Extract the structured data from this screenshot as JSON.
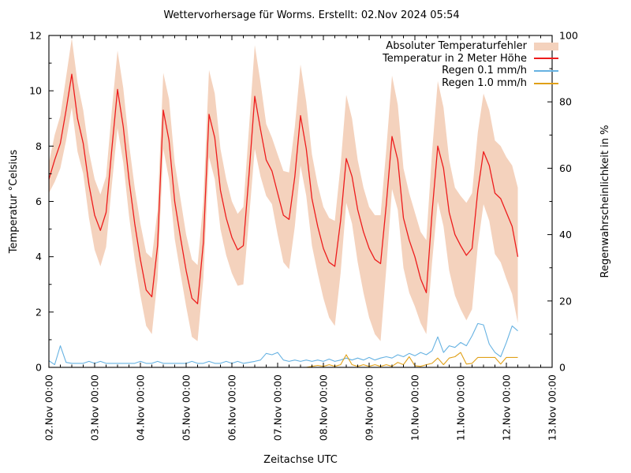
{
  "title": "Wettervorhersage für Worms. Erstellt: 02.Nov 2024 05:54",
  "chart_data": {
    "type": "line",
    "title": "Wettervorhersage für Worms. Erstellt: 02.Nov 2024 05:54",
    "xlabel": "Zeitachse UTC",
    "ylabel_left": "Temperatur °Celsius",
    "ylabel_right": "Regenwahrscheinlichkeit in %",
    "ylim_left": [
      0,
      12
    ],
    "ylim_right": [
      0,
      100
    ],
    "x_range_hours": [
      0,
      264
    ],
    "grid": false,
    "legend_position": "top-right",
    "x_ticks": [
      "02.Nov 00:00",
      "03.Nov 00:00",
      "04.Nov 00:00",
      "05.Nov 00:00",
      "06.Nov 00:00",
      "07.Nov 00:00",
      "08.Nov 00:00",
      "09.Nov 00:00",
      "10.Nov 00:00",
      "11.Nov 00:00",
      "12.Nov 00:00",
      "13.Nov 00:00"
    ],
    "y_ticks_left": [
      0,
      2,
      4,
      6,
      8,
      10,
      12
    ],
    "y_ticks_right": [
      0,
      20,
      40,
      60,
      80,
      100
    ],
    "legend": [
      {
        "label": "Absoluter Temperaturfehler",
        "type": "band",
        "color": "#f4d2bd"
      },
      {
        "label": "Temperatur in 2 Meter Höhe",
        "type": "line",
        "color": "#ed1c1c"
      },
      {
        "label": "Regen 0.1 mm/h",
        "type": "line",
        "color": "#66b2e2"
      },
      {
        "label": "Regen 1.0 mm/h",
        "type": "line",
        "color": "#e0a018"
      }
    ],
    "hours": [
      0,
      3,
      6,
      9,
      12,
      15,
      18,
      21,
      24,
      27,
      30,
      33,
      36,
      39,
      42,
      45,
      48,
      51,
      54,
      57,
      60,
      63,
      66,
      69,
      72,
      75,
      78,
      81,
      84,
      87,
      90,
      93,
      96,
      99,
      102,
      105,
      108,
      111,
      114,
      117,
      120,
      123,
      126,
      129,
      132,
      135,
      138,
      141,
      144,
      147,
      150,
      153,
      156,
      159,
      162,
      165,
      168,
      171,
      174,
      177,
      180,
      183,
      186,
      189,
      192,
      195,
      198,
      201,
      204,
      207,
      210,
      213,
      216,
      219,
      222,
      225,
      228,
      231,
      234,
      237,
      240,
      243,
      246
    ],
    "series": [
      {
        "name": "Absoluter Temperaturfehler",
        "style": "band",
        "axis": "left",
        "color": "#f4d2bd",
        "upper": [
          7.4,
          8.4,
          9.1,
          10.5,
          11.9,
          10.3,
          9.3,
          7.8,
          6.8,
          6.25,
          6.9,
          9.3,
          11.45,
          10.1,
          8.1,
          6.5,
          5.2,
          4.15,
          3.95,
          5.7,
          10.65,
          9.7,
          7.4,
          6.1,
          4.8,
          3.9,
          3.7,
          6.0,
          10.75,
          9.9,
          7.9,
          6.8,
          6.0,
          5.55,
          5.8,
          8.7,
          11.65,
          10.3,
          8.8,
          8.3,
          7.7,
          7.1,
          7.05,
          8.7,
          10.95,
          9.6,
          7.7,
          6.6,
          5.8,
          5.4,
          5.3,
          7.3,
          9.85,
          9.0,
          7.5,
          6.5,
          5.8,
          5.5,
          5.5,
          7.9,
          10.55,
          9.5,
          7.2,
          6.3,
          5.6,
          4.9,
          4.6,
          7.8,
          10.35,
          9.4,
          7.5,
          6.5,
          6.2,
          5.95,
          6.3,
          8.5,
          9.9,
          9.3,
          8.2,
          8.0,
          7.6,
          7.3,
          6.5
        ],
        "lower": [
          6.3,
          6.7,
          7.2,
          8.2,
          9.4,
          7.8,
          7.0,
          5.4,
          4.25,
          3.65,
          4.35,
          6.6,
          8.65,
          7.4,
          5.5,
          3.9,
          2.6,
          1.5,
          1.2,
          3.2,
          7.9,
          6.8,
          4.65,
          3.4,
          2.2,
          1.1,
          0.95,
          3.2,
          7.6,
          6.8,
          5.0,
          4.05,
          3.4,
          2.95,
          3.0,
          5.4,
          7.9,
          6.9,
          6.2,
          5.9,
          4.8,
          3.8,
          3.55,
          5.1,
          7.3,
          6.2,
          4.4,
          3.4,
          2.5,
          1.8,
          1.5,
          3.4,
          5.95,
          5.2,
          3.8,
          2.7,
          1.8,
          1.2,
          0.95,
          3.6,
          6.45,
          5.7,
          3.6,
          2.7,
          2.2,
          1.6,
          1.2,
          3.8,
          6.0,
          5.1,
          3.5,
          2.6,
          2.1,
          1.7,
          2.1,
          4.4,
          5.9,
          5.3,
          4.1,
          3.8,
          3.2,
          2.65,
          1.6
        ]
      },
      {
        "name": "Temperatur in 2 Meter Höhe",
        "style": "line",
        "axis": "left",
        "color": "#ed1c1c",
        "values": [
          6.8,
          7.5,
          8.1,
          9.3,
          10.6,
          9.0,
          8.1,
          6.6,
          5.5,
          4.95,
          5.6,
          7.9,
          10.05,
          8.7,
          6.8,
          5.2,
          3.9,
          2.8,
          2.55,
          4.4,
          9.3,
          8.2,
          6.0,
          4.7,
          3.5,
          2.5,
          2.3,
          4.5,
          9.15,
          8.3,
          6.4,
          5.4,
          4.7,
          4.25,
          4.4,
          7.0,
          9.8,
          8.6,
          7.5,
          7.1,
          6.3,
          5.5,
          5.35,
          6.9,
          9.1,
          7.9,
          6.1,
          5.1,
          4.3,
          3.8,
          3.65,
          5.3,
          7.55,
          6.9,
          5.7,
          4.9,
          4.3,
          3.9,
          3.75,
          5.9,
          8.35,
          7.5,
          5.4,
          4.6,
          4.0,
          3.2,
          2.7,
          5.6,
          8.0,
          7.2,
          5.6,
          4.8,
          4.4,
          4.05,
          4.3,
          6.4,
          7.8,
          7.3,
          6.3,
          6.1,
          5.6,
          5.1,
          4.0
        ]
      },
      {
        "name": "Regen 0.1 mm/h",
        "style": "line",
        "axis": "right",
        "color": "#66b2e2",
        "values": [
          2,
          0.8,
          6.5,
          1.5,
          1.2,
          1.2,
          1.2,
          1.8,
          1.2,
          1.8,
          1.2,
          1.2,
          1.2,
          1.2,
          1.2,
          1.2,
          1.8,
          1.2,
          1.2,
          1.8,
          1.2,
          1.2,
          1.2,
          1.2,
          1.2,
          1.8,
          1.2,
          1.2,
          1.8,
          1.2,
          1.2,
          1.8,
          1.2,
          1.8,
          1.2,
          1.5,
          1.8,
          2.2,
          4.2,
          3.8,
          4.5,
          2.2,
          1.8,
          2.2,
          1.8,
          2.2,
          1.8,
          2.2,
          1.8,
          2.5,
          1.8,
          2.2,
          2.8,
          2.2,
          2.8,
          2.2,
          3.0,
          2.2,
          2.8,
          3.2,
          2.8,
          3.8,
          3.2,
          4.2,
          3.5,
          4.5,
          3.8,
          5.0,
          9.2,
          4.5,
          6.5,
          6.0,
          7.5,
          6.5,
          9.5,
          13.2,
          12.8,
          7.0,
          4.5,
          3.2,
          7.5,
          12.5,
          11.0
        ]
      },
      {
        "name": "Regen 1.0 mm/h",
        "style": "line",
        "axis": "right",
        "color": "#e0a018",
        "values": [
          0,
          0,
          0,
          0,
          0,
          0,
          0,
          0,
          0,
          0,
          0,
          0,
          0,
          0,
          0,
          0,
          0,
          0,
          0,
          0,
          0,
          0,
          0,
          0,
          0,
          0,
          0,
          0,
          0,
          0,
          0,
          0,
          0,
          0,
          0,
          0,
          0,
          0,
          0,
          0,
          0,
          0,
          0,
          0,
          0,
          0,
          0.3,
          0.6,
          0.3,
          0.8,
          0.3,
          0.8,
          3.8,
          0.8,
          0.3,
          0.8,
          0.3,
          0.8,
          0.3,
          0.8,
          0.3,
          1.5,
          0.8,
          3.2,
          0.5,
          0.3,
          0.8,
          1.2,
          2.8,
          0.8,
          2.8,
          3.2,
          4.5,
          1.0,
          1.2,
          3.0,
          3.0,
          3.0,
          3.0,
          1.0,
          3.0,
          3.0,
          3.0
        ]
      }
    ]
  }
}
